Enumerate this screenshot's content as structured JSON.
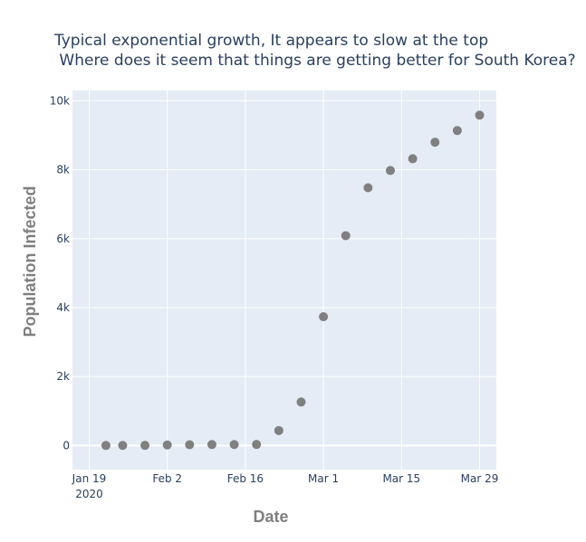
{
  "chart_data": {
    "type": "scatter",
    "title_lines": [
      "Typical exponential growth, It appears to slow at the top",
      " Where does it seem that things are getting better for South Korea?"
    ],
    "xlabel": "Date",
    "ylabel": "Population Infected",
    "x_tick_labels": [
      "Jan 19",
      "Feb 2",
      "Feb 16",
      "Mar 1",
      "Mar 15",
      "Mar 29"
    ],
    "x_tick_sublabel": "2020",
    "y_tick_labels": [
      "0",
      "2k",
      "4k",
      "6k",
      "8k",
      "10k"
    ],
    "x_range": [
      "2020-01-16",
      "2020-04-01"
    ],
    "ylim": [
      -700,
      10300
    ],
    "grid": true,
    "marker_color": "#808080",
    "plot_bgcolor": "#e5ecf6",
    "points": [
      {
        "x": "2020-01-22",
        "y": 1
      },
      {
        "x": "2020-01-25",
        "y": 2
      },
      {
        "x": "2020-01-29",
        "y": 4
      },
      {
        "x": "2020-02-02",
        "y": 15
      },
      {
        "x": "2020-02-06",
        "y": 23
      },
      {
        "x": "2020-02-10",
        "y": 27
      },
      {
        "x": "2020-02-14",
        "y": 28
      },
      {
        "x": "2020-02-18",
        "y": 31
      },
      {
        "x": "2020-02-22",
        "y": 433
      },
      {
        "x": "2020-02-26",
        "y": 1261
      },
      {
        "x": "2020-03-01",
        "y": 3736
      },
      {
        "x": "2020-03-05",
        "y": 6088
      },
      {
        "x": "2020-03-09",
        "y": 7478
      },
      {
        "x": "2020-03-13",
        "y": 7979
      },
      {
        "x": "2020-03-17",
        "y": 8320
      },
      {
        "x": "2020-03-21",
        "y": 8799
      },
      {
        "x": "2020-03-25",
        "y": 9137
      },
      {
        "x": "2020-03-29",
        "y": 9583
      }
    ]
  }
}
